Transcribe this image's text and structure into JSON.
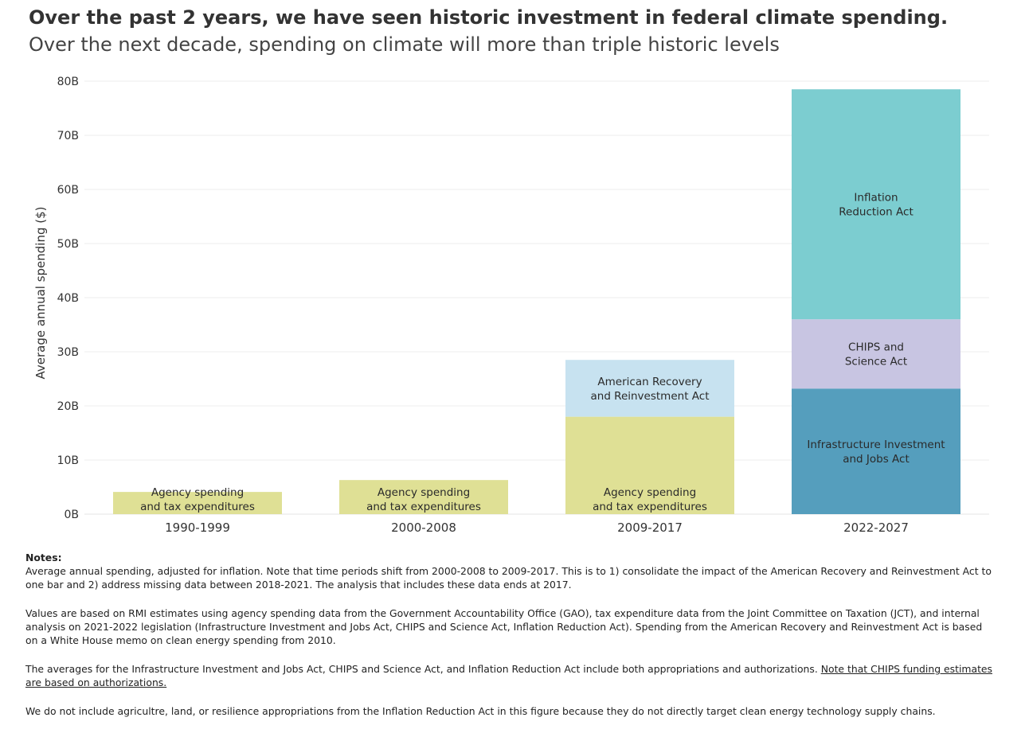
{
  "title": "Over the past 2 years, we have seen historic investment in federal climate spending.",
  "subtitle": "Over the next decade, spending on climate will more than triple historic levels",
  "colors": {
    "agency": "#dfe095",
    "arra": "#c7e2f0",
    "iija": "#559ebd",
    "chips": "#c8c5e2",
    "ira": "#7ccdd0",
    "grid": "#eeeeee",
    "text": "#333333"
  },
  "chart_data": {
    "type": "bar",
    "stacked": true,
    "ylabel": "Average annual spending ($)",
    "ylim": [
      0,
      80
    ],
    "yticks": [
      0,
      10,
      20,
      30,
      40,
      50,
      60,
      70,
      80
    ],
    "ytick_labels": [
      "0B",
      "10B",
      "20B",
      "30B",
      "40B",
      "50B",
      "60B",
      "70B",
      "80B"
    ],
    "categories": [
      "1990-1999",
      "2000-2008",
      "2009-2017",
      "2022-2027"
    ],
    "series": [
      {
        "key": "agency",
        "label": [
          "Agency spending",
          "and tax expenditures"
        ],
        "values": [
          4.1,
          6.3,
          18.0,
          0
        ]
      },
      {
        "key": "arra",
        "label": [
          "American Recovery",
          "and Reinvestment Act"
        ],
        "values": [
          0,
          0,
          10.5,
          0
        ]
      },
      {
        "key": "iija",
        "label": [
          "Infrastructure Investment",
          "and Jobs Act"
        ],
        "values": [
          0,
          0,
          0,
          23.2
        ]
      },
      {
        "key": "chips",
        "label": [
          "CHIPS and",
          "Science Act"
        ],
        "values": [
          0,
          0,
          0,
          12.8
        ]
      },
      {
        "key": "ira",
        "label": [
          "Inflation",
          "Reduction Act"
        ],
        "values": [
          0,
          0,
          0,
          42.5
        ]
      }
    ],
    "grid": true
  },
  "notes": {
    "heading": "Notes:",
    "p1": "Average annual spending, adjusted for inflation. Note that time periods shift from 2000-2008 to 2009-2017. This is to 1) consolidate the impact of the American Recovery and Reinvestment Act to one bar and 2) address missing data between 2018-2021. The  analysis that includes these data ends at 2017.",
    "p2": "Values are based on RMI estimates using agency spending data from the Government Accountability Office (GAO), tax expenditure data from the Joint Committee on Taxation (JCT), and internal analysis on 2021-2022 legislation (Infrastructure Investment and Jobs Act, CHIPS and Science Act, Inflation Reduction Act). Spending from the American Recovery and Reinvestment Act is based on a White House memo on clean energy spending from 2010.",
    "p3": "The averages for the Infrastructure Investment and Jobs Act, CHIPS and Science Act, and Inflation Reduction Act include both appropriations and authorizations. ",
    "p3_underlined": "Note that CHIPS funding estimates are based on authorizations.",
    "p4": "We do not include agricultre, land, or resilience appropriations from the Inflation Reduction Act in this figure because they do not directly target clean energy technology supply chains."
  }
}
